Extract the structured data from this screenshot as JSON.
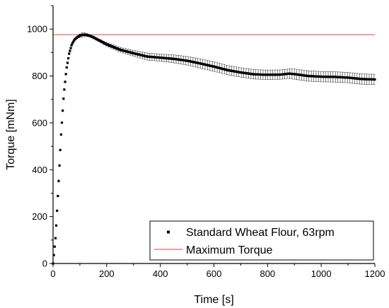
{
  "chart_data": {
    "type": "scatter",
    "xlabel": "Time [s]",
    "ylabel": "Torque [mNm]",
    "xlim": [
      0,
      1200
    ],
    "ylim": [
      0,
      1100
    ],
    "xticks": [
      0,
      200,
      400,
      600,
      800,
      1000,
      1200
    ],
    "yticks": [
      0,
      200,
      400,
      600,
      800,
      1000
    ],
    "grid": false,
    "legend_position": "bottom-right",
    "series": [
      {
        "name": "Standard Wheat Flour, 63rpm",
        "style": "square-markers-with-error-bars",
        "color": "#000000",
        "x": [
          0,
          10,
          20,
          30,
          40,
          50,
          60,
          70,
          80,
          90,
          100,
          110,
          120,
          130,
          140,
          150,
          175,
          200,
          250,
          300,
          350,
          400,
          450,
          500,
          550,
          600,
          650,
          700,
          750,
          800,
          850,
          880,
          900,
          950,
          1000,
          1050,
          1100,
          1150,
          1200
        ],
        "y": [
          0,
          120,
          330,
          550,
          720,
          830,
          895,
          935,
          955,
          965,
          972,
          976,
          976,
          974,
          970,
          965,
          950,
          935,
          912,
          897,
          883,
          878,
          873,
          865,
          853,
          840,
          825,
          815,
          807,
          805,
          806,
          810,
          808,
          800,
          797,
          796,
          793,
          787,
          785
        ],
        "err": [
          0,
          0,
          0,
          0,
          0,
          0,
          2,
          3,
          4,
          5,
          8,
          10,
          8,
          6,
          5,
          5,
          6,
          8,
          10,
          12,
          15,
          15,
          17,
          18,
          20,
          20,
          20,
          20,
          20,
          20,
          20,
          20,
          22,
          22,
          22,
          22,
          22,
          22,
          22
        ]
      },
      {
        "name": "Maximum Torque",
        "style": "line",
        "color": "#e26a6a",
        "y": 976
      }
    ]
  }
}
